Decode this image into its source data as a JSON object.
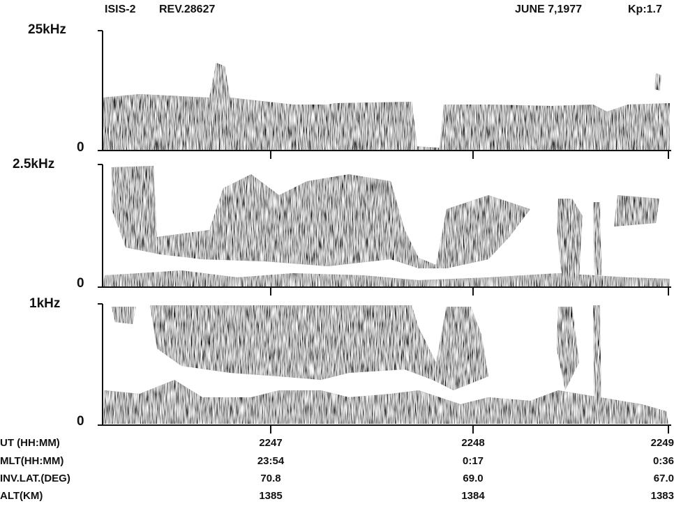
{
  "header": {
    "satellite": "ISIS-2",
    "revolution": "REV.28627",
    "date": "JUNE 7,1977",
    "kp": "Kp:1.7"
  },
  "panels": [
    {
      "top_label": "25kHz",
      "bottom_label": "0"
    },
    {
      "top_label": "2.5kHz",
      "bottom_label": "0"
    },
    {
      "top_label": "1kHz",
      "bottom_label": "0"
    }
  ],
  "footer": {
    "row_labels": [
      "UT (HH:MM)",
      "MLT(HH:MM)",
      "INV.LAT.(DEG)",
      "ALT(KM)"
    ],
    "columns": [
      [
        "2247",
        "23:54",
        "70.8",
        "1385"
      ],
      [
        "2248",
        "0:17",
        "69.0",
        "1384"
      ],
      [
        "2249",
        "0:36",
        "67.0",
        "1383"
      ]
    ]
  }
}
